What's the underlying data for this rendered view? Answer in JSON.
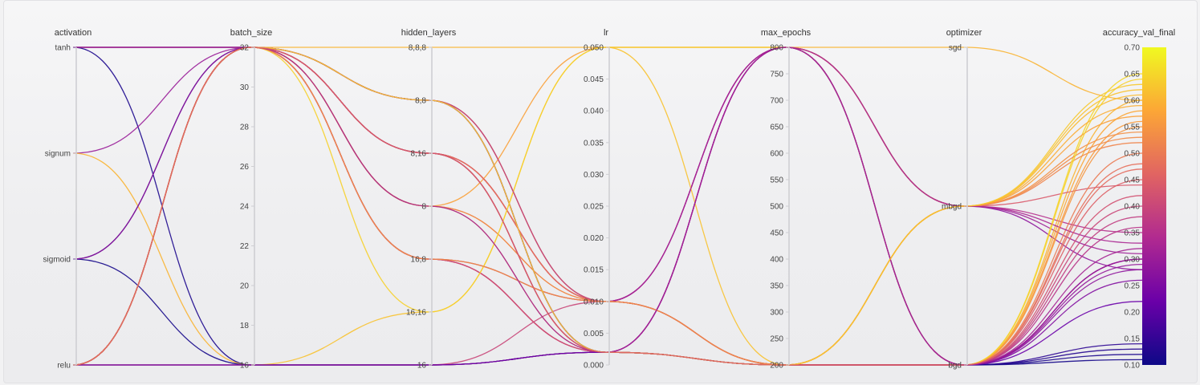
{
  "chart_data": {
    "type": "parallel_coordinates",
    "colormap": [
      "#0d0887",
      "#6a00a8",
      "#b12a90",
      "#e16462",
      "#fca636",
      "#f0f921"
    ],
    "color_by": "accuracy_val_final",
    "axes": [
      {
        "name": "activation",
        "type": "categorical",
        "categories": [
          "tanh",
          "signum",
          "sigmoid",
          "relu"
        ]
      },
      {
        "name": "batch_size",
        "type": "numeric",
        "min": 16,
        "max": 32,
        "ticks": [
          16,
          18,
          20,
          22,
          24,
          26,
          28,
          30,
          32
        ]
      },
      {
        "name": "hidden_layers",
        "type": "categorical",
        "categories": [
          "8,8,8",
          "8,8",
          "8,16",
          "8",
          "16,8",
          "16,16",
          "16"
        ]
      },
      {
        "name": "lr",
        "type": "numeric",
        "min": 0,
        "max": 0.05,
        "ticks": [
          0.0,
          0.005,
          0.01,
          0.015,
          0.02,
          0.025,
          0.03,
          0.035,
          0.04,
          0.045,
          0.05
        ],
        "tick_labels": [
          "0.000",
          "0.005",
          "0.010",
          "0.015",
          "0.020",
          "0.025",
          "0.030",
          "0.035",
          "0.040",
          "0.045",
          "0.050"
        ]
      },
      {
        "name": "max_epochs",
        "type": "numeric",
        "min": 200,
        "max": 800,
        "ticks": [
          200,
          250,
          300,
          350,
          400,
          450,
          500,
          550,
          600,
          650,
          700,
          750,
          800
        ]
      },
      {
        "name": "optimizer",
        "type": "categorical",
        "categories": [
          "sgd",
          "mbgd",
          "bgd"
        ]
      },
      {
        "name": "accuracy_val_final",
        "type": "numeric",
        "min": 0.1,
        "max": 0.7,
        "ticks": [
          0.1,
          0.15,
          0.2,
          0.25,
          0.3,
          0.35,
          0.4,
          0.45,
          0.5,
          0.55,
          0.6,
          0.65,
          0.7
        ],
        "tick_labels": [
          "0.10",
          "0.15",
          "0.20",
          "0.25",
          "0.30",
          "0.35",
          "0.40",
          "0.45",
          "0.50",
          "0.55",
          "0.60",
          "0.65",
          "0.70"
        ]
      }
    ],
    "runs": [
      [
        "tanh",
        32,
        "8,8",
        0.01,
        800,
        "mbgd",
        0.31
      ],
      [
        "tanh",
        32,
        "8,16",
        0.002,
        200,
        "bgd",
        0.3
      ],
      [
        "tanh",
        32,
        "16,8",
        0.002,
        800,
        "bgd",
        0.28
      ],
      [
        "tanh",
        16,
        "16",
        0.002,
        200,
        "bgd",
        0.12
      ],
      [
        "tanh",
        32,
        "8,8",
        0.002,
        200,
        "bgd",
        0.14
      ],
      [
        "tanh",
        32,
        "8,16",
        0.01,
        800,
        "mbgd",
        0.35
      ],
      [
        "signum",
        32,
        "8,8",
        0.002,
        200,
        "bgd",
        0.3
      ],
      [
        "signum",
        16,
        "16",
        0.002,
        200,
        "bgd",
        0.6
      ],
      [
        "sigmoid",
        32,
        "8,8",
        0.002,
        200,
        "bgd",
        0.13
      ],
      [
        "sigmoid",
        16,
        "16",
        0.002,
        200,
        "bgd",
        0.11
      ],
      [
        "sigmoid",
        32,
        "8,16",
        0.01,
        800,
        "mbgd",
        0.28
      ],
      [
        "relu",
        32,
        "8,8,8",
        0.05,
        800,
        "sgd",
        0.6
      ],
      [
        "relu",
        32,
        "8",
        0.01,
        200,
        "mbgd",
        0.52
      ],
      [
        "relu",
        32,
        "8,16",
        0.01,
        200,
        "mbgd",
        0.44
      ],
      [
        "relu",
        16,
        "16,16",
        0.05,
        200,
        "mbgd",
        0.62
      ],
      [
        "relu",
        16,
        "16",
        0.01,
        200,
        "bgd",
        0.4
      ],
      [
        "relu",
        16,
        "16",
        0.002,
        800,
        "bgd",
        0.3
      ],
      [
        "relu",
        32,
        "8,8",
        0.002,
        200,
        "bgd",
        0.65
      ],
      [
        "relu",
        32,
        "8,16",
        0.002,
        200,
        "bgd",
        0.58
      ],
      [
        "relu",
        32,
        "16,8",
        0.01,
        200,
        "bgd",
        0.55
      ],
      [
        "relu",
        32,
        "8",
        0.05,
        800,
        "mbgd",
        0.57
      ],
      [
        "relu",
        32,
        "16,8",
        0.002,
        200,
        "bgd",
        0.5
      ],
      [
        "relu",
        32,
        "8,16",
        0.01,
        200,
        "bgd",
        0.47
      ],
      [
        "relu",
        32,
        "8,8",
        0.01,
        200,
        "mbgd",
        0.61
      ],
      [
        "relu",
        32,
        "16,8",
        0.002,
        800,
        "bgd",
        0.36
      ],
      [
        "relu",
        32,
        "8",
        0.01,
        200,
        "mbgd",
        0.53
      ],
      [
        "relu",
        32,
        "8,16",
        0.002,
        200,
        "mbgd",
        0.59
      ],
      [
        "relu",
        32,
        "16,8",
        0.01,
        800,
        "mbgd",
        0.33
      ],
      [
        "relu",
        32,
        "8,8",
        0.002,
        800,
        "bgd",
        0.26
      ],
      [
        "relu",
        32,
        "8",
        0.002,
        200,
        "bgd",
        0.56
      ],
      [
        "relu",
        32,
        "8,16",
        0.01,
        200,
        "bgd",
        0.48
      ],
      [
        "relu",
        32,
        "16,8",
        0.002,
        200,
        "bgd",
        0.42
      ],
      [
        "relu",
        32,
        "16,16",
        0.05,
        800,
        "bgd",
        0.64
      ],
      [
        "relu",
        16,
        "16",
        0.002,
        200,
        "bgd",
        0.22
      ],
      [
        "relu",
        32,
        "8,8",
        0.01,
        200,
        "bgd",
        0.38
      ],
      [
        "relu",
        32,
        "8,16",
        0.002,
        800,
        "bgd",
        0.29
      ],
      [
        "relu",
        32,
        "16,8",
        0.01,
        200,
        "mbgd",
        0.54
      ],
      [
        "relu",
        32,
        "8",
        0.002,
        800,
        "bgd",
        0.32
      ],
      [
        "relu",
        32,
        "8,8",
        0.002,
        200,
        "mbgd",
        0.63
      ],
      [
        "relu",
        32,
        "8,16",
        0.002,
        200,
        "bgd",
        0.45
      ]
    ]
  }
}
